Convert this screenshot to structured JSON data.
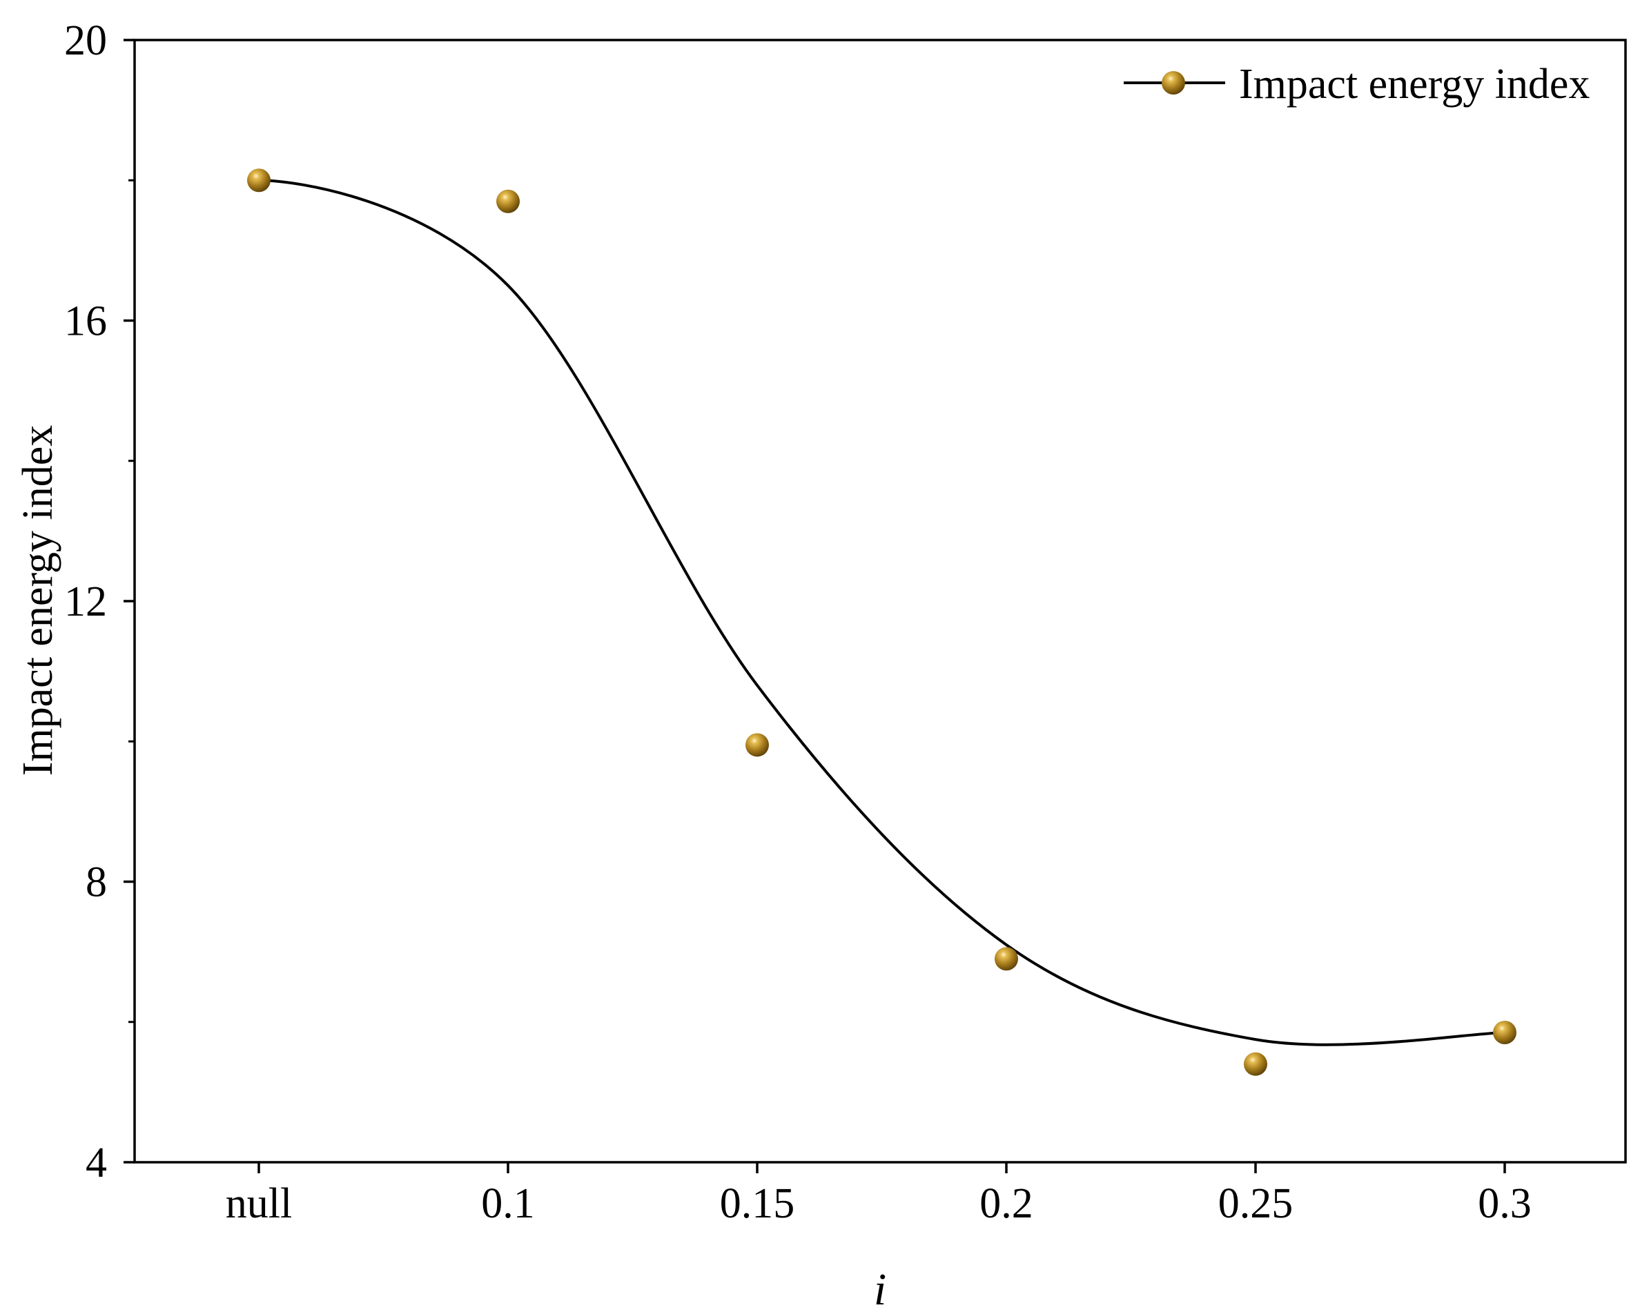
{
  "chart_data": {
    "type": "line",
    "title": "",
    "xlabel": "i",
    "ylabel": "Impact energy index",
    "categories": [
      "null",
      "0.1",
      "0.15",
      "0.2",
      "0.25",
      "0.3"
    ],
    "series": [
      {
        "name": "Impact energy index",
        "values": [
          18.0,
          17.7,
          9.95,
          6.9,
          5.4,
          5.85
        ],
        "color": "#a07818",
        "line_color": "#000000",
        "smoothed": true
      }
    ],
    "ylim": [
      4,
      20
    ],
    "yticks": [
      4,
      8,
      12,
      16,
      20
    ],
    "grid": false,
    "legend": "top-right"
  }
}
